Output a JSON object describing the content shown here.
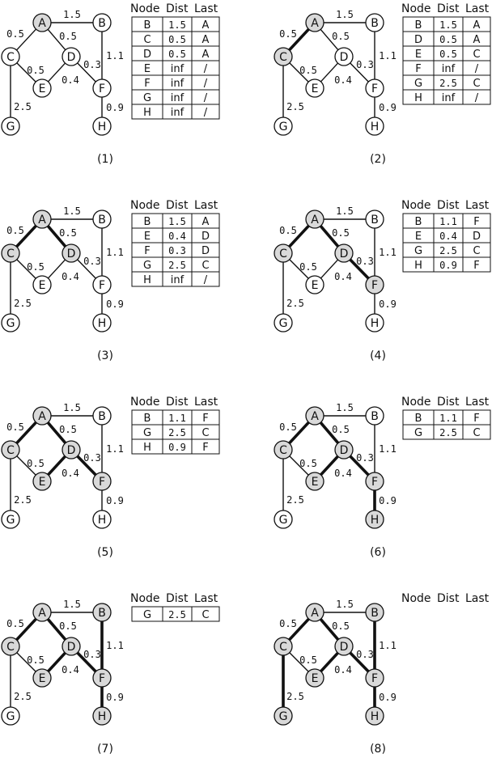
{
  "colors": {
    "line": "#111111",
    "visited_fill": "#d9d9d9",
    "unvisited_fill": "#ffffff",
    "background": "#ffffff"
  },
  "graph": {
    "nodes": [
      "A",
      "B",
      "C",
      "D",
      "E",
      "F",
      "G",
      "H"
    ],
    "edges": [
      {
        "id": "A-B",
        "from": "A",
        "to": "B",
        "weight": "1.5"
      },
      {
        "id": "A-C",
        "from": "A",
        "to": "C",
        "weight": "0.5"
      },
      {
        "id": "A-D",
        "from": "A",
        "to": "D",
        "weight": "0.5"
      },
      {
        "id": "C-E",
        "from": "C",
        "to": "E",
        "weight": "0.5"
      },
      {
        "id": "C-G",
        "from": "C",
        "to": "G",
        "weight": "2.5"
      },
      {
        "id": "D-E",
        "from": "D",
        "to": "E",
        "weight": "0.4"
      },
      {
        "id": "D-F",
        "from": "D",
        "to": "F",
        "weight": "0.3"
      },
      {
        "id": "B-F",
        "from": "B",
        "to": "F",
        "weight": "1.1"
      },
      {
        "id": "F-H",
        "from": "F",
        "to": "H",
        "weight": "0.9"
      }
    ]
  },
  "table_headers": [
    "Node",
    "Dist",
    "Last"
  ],
  "steps": [
    {
      "caption": "(1)",
      "visited": [
        "A"
      ],
      "tree_edges": [],
      "table": [
        [
          "B",
          "1.5",
          "A"
        ],
        [
          "C",
          "0.5",
          "A"
        ],
        [
          "D",
          "0.5",
          "A"
        ],
        [
          "E",
          "inf",
          "/"
        ],
        [
          "F",
          "inf",
          "/"
        ],
        [
          "G",
          "inf",
          "/"
        ],
        [
          "H",
          "inf",
          "/"
        ]
      ]
    },
    {
      "caption": "(2)",
      "visited": [
        "A",
        "C"
      ],
      "tree_edges": [
        "A-C"
      ],
      "table": [
        [
          "B",
          "1.5",
          "A"
        ],
        [
          "D",
          "0.5",
          "A"
        ],
        [
          "E",
          "0.5",
          "C"
        ],
        [
          "F",
          "inf",
          "/"
        ],
        [
          "G",
          "2.5",
          "C"
        ],
        [
          "H",
          "inf",
          "/"
        ]
      ]
    },
    {
      "caption": "(3)",
      "visited": [
        "A",
        "C",
        "D"
      ],
      "tree_edges": [
        "A-C",
        "A-D"
      ],
      "table": [
        [
          "B",
          "1.5",
          "A"
        ],
        [
          "E",
          "0.4",
          "D"
        ],
        [
          "F",
          "0.3",
          "D"
        ],
        [
          "G",
          "2.5",
          "C"
        ],
        [
          "H",
          "inf",
          "/"
        ]
      ]
    },
    {
      "caption": "(4)",
      "visited": [
        "A",
        "C",
        "D",
        "F"
      ],
      "tree_edges": [
        "A-C",
        "A-D",
        "D-F"
      ],
      "table": [
        [
          "B",
          "1.1",
          "F"
        ],
        [
          "E",
          "0.4",
          "D"
        ],
        [
          "G",
          "2.5",
          "C"
        ],
        [
          "H",
          "0.9",
          "F"
        ]
      ]
    },
    {
      "caption": "(5)",
      "visited": [
        "A",
        "C",
        "D",
        "F",
        "E"
      ],
      "tree_edges": [
        "A-C",
        "A-D",
        "D-F",
        "D-E"
      ],
      "table": [
        [
          "B",
          "1.1",
          "F"
        ],
        [
          "G",
          "2.5",
          "C"
        ],
        [
          "H",
          "0.9",
          "F"
        ]
      ]
    },
    {
      "caption": "(6)",
      "visited": [
        "A",
        "C",
        "D",
        "F",
        "E",
        "H"
      ],
      "tree_edges": [
        "A-C",
        "A-D",
        "D-F",
        "D-E",
        "F-H"
      ],
      "table": [
        [
          "B",
          "1.1",
          "F"
        ],
        [
          "G",
          "2.5",
          "C"
        ]
      ]
    },
    {
      "caption": "(7)",
      "visited": [
        "A",
        "C",
        "D",
        "F",
        "E",
        "H",
        "B"
      ],
      "tree_edges": [
        "A-C",
        "A-D",
        "D-F",
        "D-E",
        "F-H",
        "B-F"
      ],
      "table": [
        [
          "G",
          "2.5",
          "C"
        ]
      ]
    },
    {
      "caption": "(8)",
      "visited": [
        "A",
        "C",
        "D",
        "F",
        "E",
        "H",
        "B",
        "G"
      ],
      "tree_edges": [
        "A-C",
        "A-D",
        "D-F",
        "D-E",
        "F-H",
        "B-F",
        "C-G"
      ],
      "table": []
    }
  ]
}
